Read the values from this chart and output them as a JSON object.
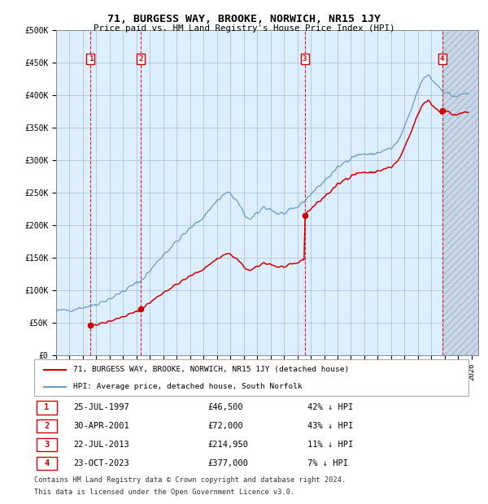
{
  "title": "71, BURGESS WAY, BROOKE, NORWICH, NR15 1JY",
  "subtitle": "Price paid vs. HM Land Registry's House Price Index (HPI)",
  "legend_line1": "71, BURGESS WAY, BROOKE, NORWICH, NR15 1JY (detached house)",
  "legend_line2": "HPI: Average price, detached house, South Norfolk",
  "footer1": "Contains HM Land Registry data © Crown copyright and database right 2024.",
  "footer2": "This data is licensed under the Open Government Licence v3.0.",
  "sales": [
    {
      "date": 1997.57,
      "price": 46500,
      "label": "1",
      "date_str": "25-JUL-1997",
      "pct": "42%"
    },
    {
      "date": 2001.33,
      "price": 72000,
      "label": "2",
      "date_str": "30-APR-2001",
      "pct": "43%"
    },
    {
      "date": 2013.55,
      "price": 214950,
      "label": "3",
      "date_str": "22-JUL-2013",
      "pct": "11%"
    },
    {
      "date": 2023.81,
      "price": 377000,
      "label": "4",
      "date_str": "23-OCT-2023",
      "pct": "7%"
    }
  ],
  "hpi_color": "#6699cc",
  "sale_color": "#cc0000",
  "vline_color": "#cc0000",
  "bg_color": "#ddeeff",
  "grid_color": "#aabbcc",
  "ylim": [
    0,
    500000
  ],
  "yticks": [
    0,
    50000,
    100000,
    150000,
    200000,
    250000,
    300000,
    350000,
    400000,
    450000,
    500000
  ],
  "xlim_start": 1995.0,
  "xlim_end": 2026.5
}
